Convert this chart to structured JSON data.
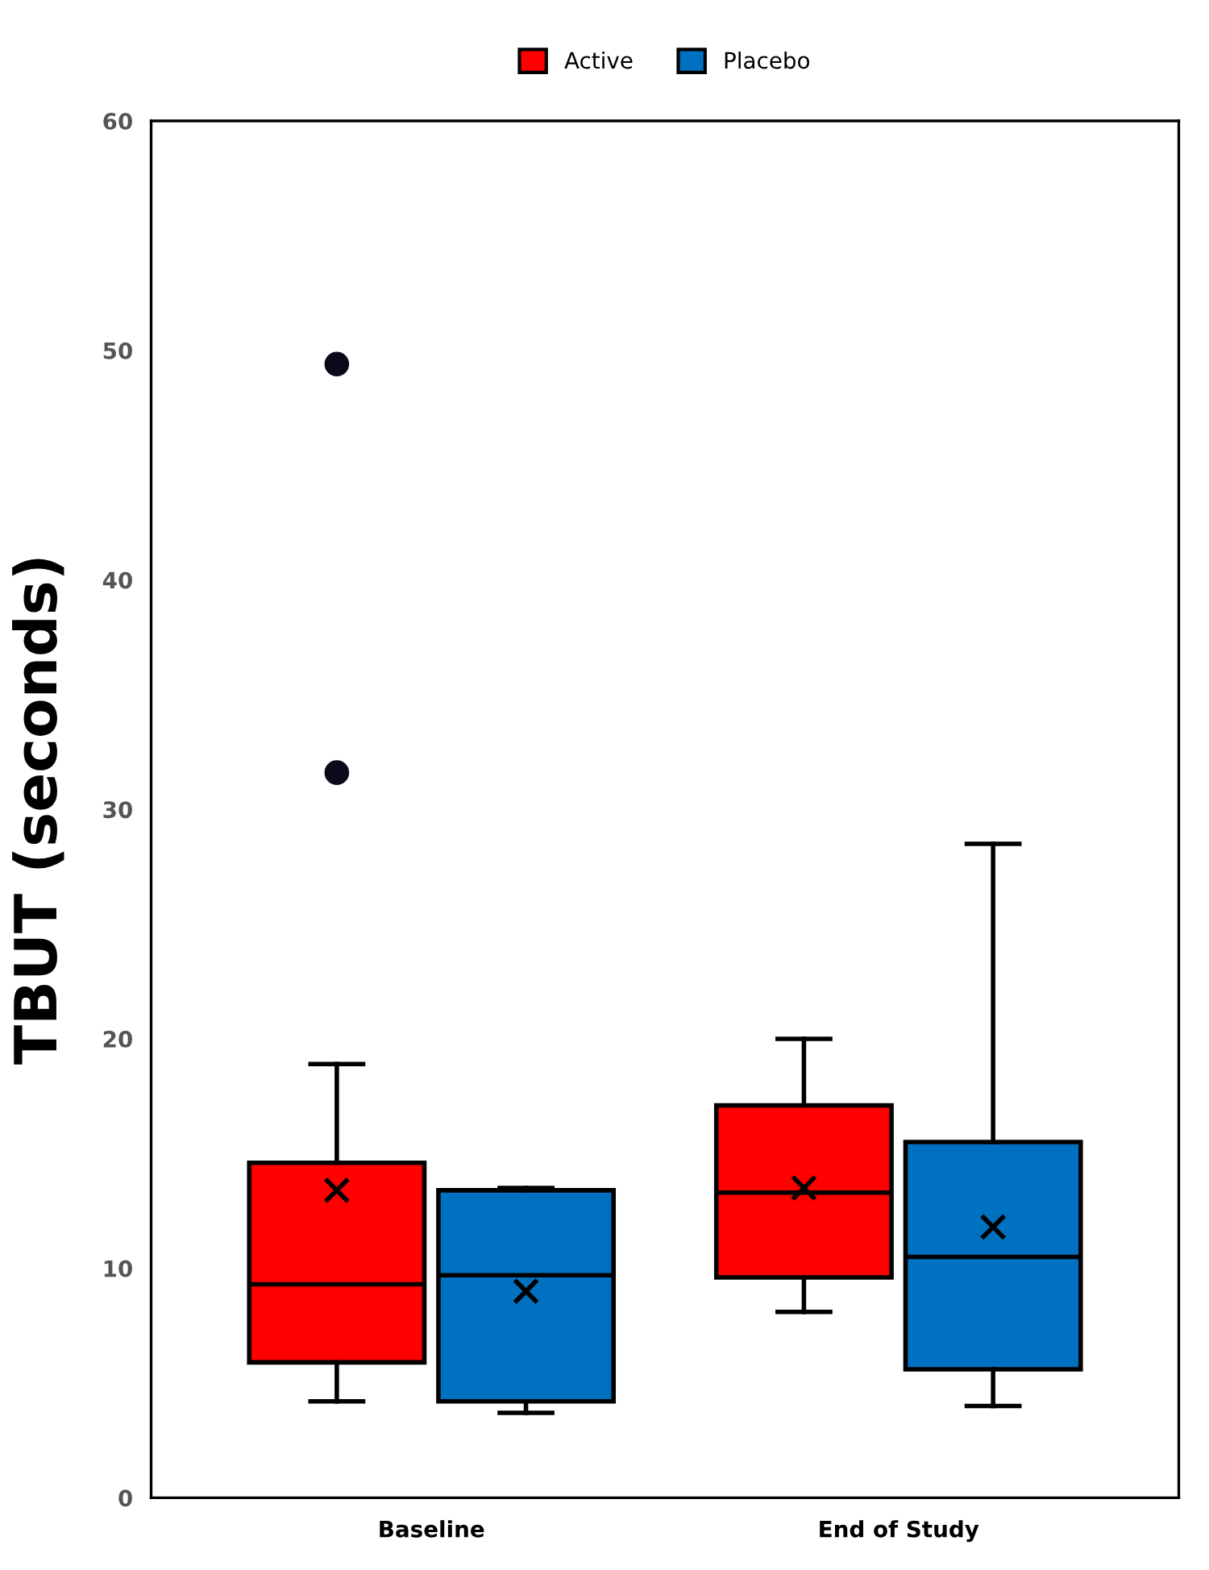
{
  "chart_data": {
    "type": "box",
    "ylabel": "TBUT (seconds)",
    "categories": [
      "Baseline",
      "End of Study"
    ],
    "ylim": [
      0,
      60
    ],
    "yticks": [
      0,
      10,
      20,
      30,
      40,
      50,
      60
    ],
    "legend": "top",
    "grid": false,
    "marker": "cross",
    "series": [
      {
        "name": "Active",
        "color": "#ff0000",
        "boxes": [
          {
            "low": 4.2,
            "q1": 5.9,
            "median": 9.3,
            "q3": 14.6,
            "high": 18.9,
            "mean": 13.4,
            "outliers": [
              31.6,
              49.4
            ]
          },
          {
            "low": 8.1,
            "q1": 9.6,
            "median": 13.3,
            "q3": 17.1,
            "high": 20.0,
            "mean": 13.5
          }
        ]
      },
      {
        "name": "Placebo",
        "color": "#0070c0",
        "boxes": [
          {
            "low": 3.7,
            "q1": 4.2,
            "median": 9.7,
            "q3": 13.4,
            "high": 13.5,
            "mean": 9.0
          },
          {
            "low": 4.0,
            "q1": 5.6,
            "median": 10.5,
            "q3": 15.5,
            "high": 28.5,
            "mean": 11.8
          }
        ]
      }
    ]
  }
}
